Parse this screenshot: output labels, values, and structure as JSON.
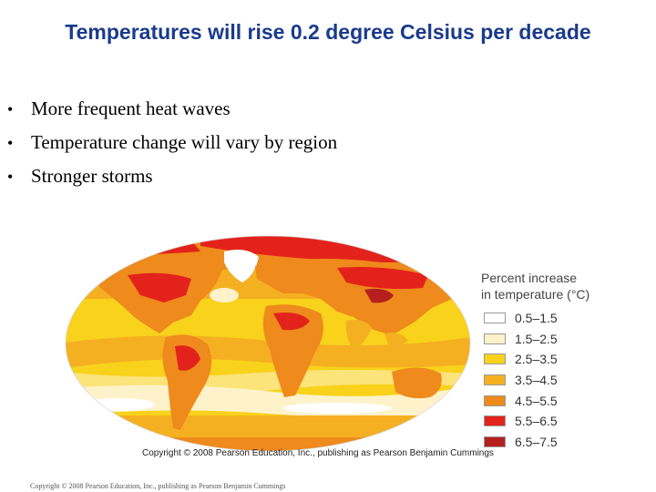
{
  "slide": {
    "title": "Temperatures will rise 0.2 degree Celsius per decade",
    "bullets": [
      "More frequent heat waves",
      "Temperature change will vary by region",
      "Stronger storms"
    ],
    "bullet_glyph": "•"
  },
  "figure": {
    "legend_title_line1": "Percent increase",
    "legend_title_line2": "in temperature (°C)",
    "legend": [
      {
        "label": "0.5–1.5",
        "color": "#ffffff"
      },
      {
        "label": "1.5–2.5",
        "color": "#fdf2c9"
      },
      {
        "label": "2.5–3.5",
        "color": "#f8d21b"
      },
      {
        "label": "3.5–4.5",
        "color": "#f5b022"
      },
      {
        "label": "4.5–5.5",
        "color": "#ef8a1c"
      },
      {
        "label": "5.5–6.5",
        "color": "#e3231b"
      },
      {
        "label": "6.5–7.5",
        "color": "#b5201e"
      }
    ],
    "copyright": "Copyright © 2008 Pearson Education, Inc., publishing as Pearson Benjamin Cummings"
  },
  "footer": {
    "text": "Copyright © 2008 Pearson Education, Inc., publishing as Pearson Benjamin Cummings"
  }
}
